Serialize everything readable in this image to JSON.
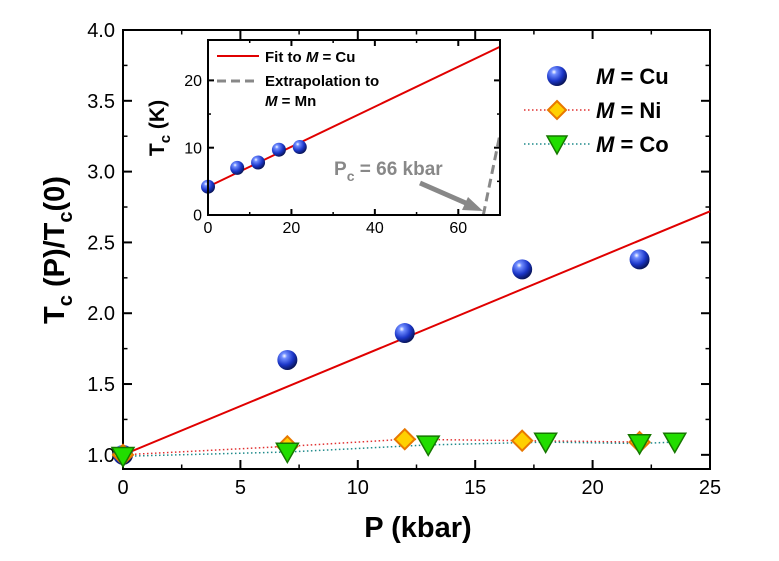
{
  "chart_data": [
    {
      "type": "scatter",
      "xlabel": "P (kbar)",
      "ylabel_base": "T",
      "ylabel_sub": "c",
      "ylabel_mid": " (P)/T",
      "ylabel_sub2": "c",
      "ylabel_end": "(0)",
      "xlim": [
        0,
        25
      ],
      "ylim": [
        0.9,
        4.0
      ],
      "xticks": [
        0,
        5,
        10,
        15,
        20,
        25
      ],
      "yticks": [
        1.0,
        1.5,
        2.0,
        2.5,
        3.0,
        3.5,
        4.0
      ],
      "xtick_labels": [
        "0",
        "5",
        "10",
        "15",
        "20",
        "25"
      ],
      "ytick_labels": [
        "1.0",
        "1.5",
        "2.0",
        "2.5",
        "3.0",
        "3.5",
        "4.0"
      ],
      "series": [
        {
          "name": "M = Cu",
          "prefix": "M",
          "suffix": " = Cu",
          "marker": "sphere",
          "color": "#1a2fb0",
          "x": [
            0,
            7,
            12,
            17,
            22
          ],
          "y": [
            1.0,
            1.67,
            1.86,
            2.31,
            2.38
          ]
        },
        {
          "name": "M = Ni",
          "prefix": "M",
          "suffix": " = Ni",
          "marker": "diamond",
          "color": "#ffd000",
          "edge": "#e87800",
          "line": "#e03030",
          "x": [
            0,
            7,
            12,
            17,
            22
          ],
          "y": [
            1.0,
            1.06,
            1.11,
            1.1,
            1.09
          ]
        },
        {
          "name": "M = Co",
          "prefix": "M",
          "suffix": " = Co",
          "marker": "triangle-down",
          "color": "#22dd00",
          "edge": "#167700",
          "line": "#1f8a8a",
          "x": [
            0,
            7,
            13,
            18,
            22,
            23.5
          ],
          "y": [
            0.99,
            1.02,
            1.07,
            1.09,
            1.08,
            1.09
          ]
        }
      ],
      "fit_line": {
        "color": "#e00000",
        "x": [
          0,
          25
        ],
        "y": [
          1.0,
          2.72
        ]
      },
      "legend_position": "top-right"
    },
    {
      "type": "scatter",
      "ylabel_base": "T",
      "ylabel_sub": "c",
      "ylabel_end": " (K)",
      "xlim": [
        0,
        70
      ],
      "ylim": [
        0,
        26
      ],
      "xticks": [
        0,
        20,
        40,
        60
      ],
      "yticks": [
        0,
        10,
        20
      ],
      "xtick_labels": [
        "0",
        "20",
        "40",
        "60"
      ],
      "ytick_labels": [
        "0",
        "10",
        "20"
      ],
      "series": [
        {
          "marker": "sphere",
          "color": "#1a2fb0",
          "x": [
            0,
            7,
            12,
            17,
            22
          ],
          "y": [
            4.2,
            7.0,
            7.8,
            9.7,
            10.1
          ]
        }
      ],
      "fit_line": {
        "label_prefix": "Fit to ",
        "label_italic": "M",
        "label_suffix": " = Cu",
        "color": "#e00000",
        "x": [
          0,
          70
        ],
        "y": [
          4.2,
          25.0
        ]
      },
      "extrapolation": {
        "label_line1": "Extrapolation to",
        "label_italic": "M",
        "label_suffix": " = Mn",
        "color": "#888888",
        "x": [
          66,
          70
        ],
        "y": [
          0,
          12
        ]
      },
      "annotation": {
        "prefix": "P",
        "sub": "c",
        "suffix": " = 66 kbar",
        "color": "#888888",
        "target": [
          66,
          0
        ]
      },
      "legend_position": "top-left"
    }
  ]
}
